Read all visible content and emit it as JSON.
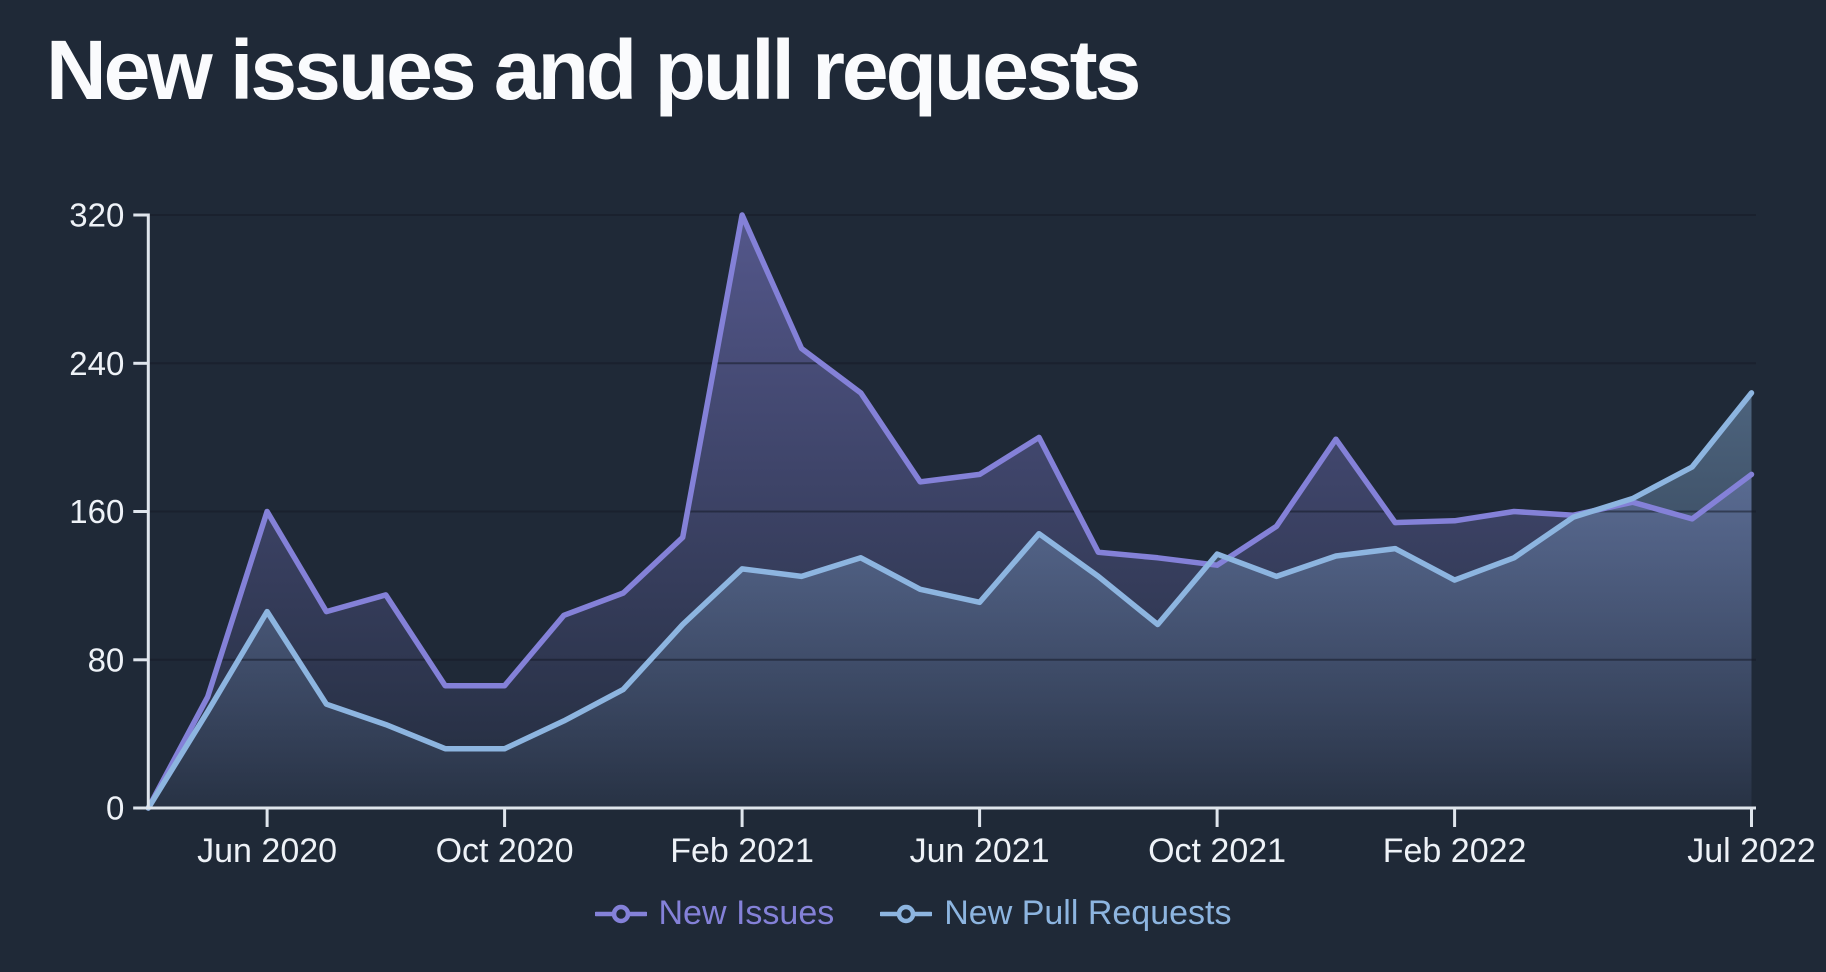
{
  "title": "New issues and pull requests",
  "colors": {
    "background": "#1f2937",
    "axis": "#dfe5ec",
    "gridline": "#151c28",
    "tick_label": "#eef2f7",
    "issues": "#8481d8",
    "pull_requests": "#8db5e0"
  },
  "legend": {
    "marker": "line-circle-marker",
    "items": [
      "New Issues",
      "New Pull Requests"
    ]
  },
  "chart_data": {
    "type": "area",
    "title": "New issues and pull requests",
    "xlabel": "",
    "ylabel": "",
    "ylim": [
      0,
      320
    ],
    "y_ticks": [
      0,
      80,
      160,
      240,
      320
    ],
    "grid": "horizontal",
    "legend_position": "bottom-center",
    "x": [
      "Apr 2020",
      "May 2020",
      "Jun 2020",
      "Jul 2020",
      "Aug 2020",
      "Sep 2020",
      "Oct 2020",
      "Nov 2020",
      "Dec 2020",
      "Jan 2021",
      "Feb 2021",
      "Mar 2021",
      "Apr 2021",
      "May 2021",
      "Jun 2021",
      "Jul 2021",
      "Aug 2021",
      "Sep 2021",
      "Oct 2021",
      "Nov 2021",
      "Dec 2021",
      "Jan 2022",
      "Feb 2022",
      "Mar 2022",
      "Apr 2022",
      "May 2022",
      "Jun 2022",
      "Jul 2022"
    ],
    "x_tick_indices": [
      2,
      6,
      10,
      14,
      18,
      22,
      27
    ],
    "x_tick_labels": [
      "Jun 2020",
      "Oct 2020",
      "Feb 2021",
      "Jun 2021",
      "Oct 2021",
      "Feb 2022",
      "Jul 2022"
    ],
    "series": [
      {
        "name": "New Issues",
        "color": "#8481d8",
        "values": [
          0,
          60,
          160,
          106,
          115,
          66,
          66,
          104,
          116,
          146,
          320,
          248,
          224,
          176,
          180,
          200,
          138,
          135,
          131,
          152,
          199,
          154,
          155,
          160,
          158,
          165,
          156,
          180
        ]
      },
      {
        "name": "New Pull Requests",
        "color": "#8db5e0",
        "values": [
          0,
          52,
          106,
          56,
          45,
          32,
          32,
          47,
          64,
          99,
          129,
          125,
          135,
          118,
          111,
          148,
          125,
          99,
          137,
          125,
          136,
          140,
          123,
          135,
          157,
          167,
          184,
          224
        ]
      }
    ]
  }
}
